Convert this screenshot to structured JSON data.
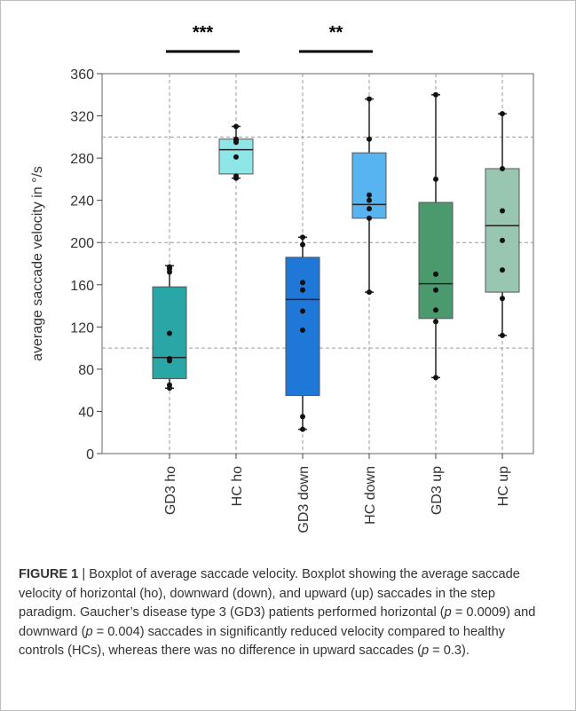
{
  "chart_data": {
    "type": "box",
    "ylabel": "average saccade velocity in °/s",
    "ylim": [
      0,
      360
    ],
    "yticks": [
      0,
      40,
      80,
      120,
      160,
      200,
      240,
      280,
      320,
      360
    ],
    "grid": "dashed, y at 100, 200 and 300; x at each category",
    "categories": [
      "GD3 ho",
      "HC ho",
      "GD3 down",
      "HC down",
      "GD3 up",
      "HC up"
    ],
    "boxes": [
      {
        "category": "GD3 ho",
        "color": "#2aa6a6",
        "min": 62,
        "q1": 71,
        "median": 91,
        "q3": 158,
        "max": 178,
        "points": [
          62,
          65,
          88,
          90,
          114,
          172,
          175,
          177
        ]
      },
      {
        "category": "HC ho",
        "color": "#8ee6e6",
        "min": 261,
        "q1": 265,
        "median": 288,
        "q3": 298,
        "max": 310,
        "points": [
          261,
          263,
          281,
          295,
          297,
          298,
          310
        ]
      },
      {
        "category": "GD3 down",
        "color": "#1f78d8",
        "min": 23,
        "q1": 55,
        "median": 146,
        "q3": 186,
        "max": 205,
        "points": [
          23,
          35,
          117,
          135,
          155,
          162,
          198,
          205
        ]
      },
      {
        "category": "HC down",
        "color": "#58b4f0",
        "min": 153,
        "q1": 223,
        "median": 236,
        "q3": 285,
        "max": 336,
        "points": [
          153,
          223,
          232,
          240,
          245,
          298,
          336
        ]
      },
      {
        "category": "GD3 up",
        "color": "#4a9a6e",
        "min": 72,
        "q1": 128,
        "median": 161,
        "q3": 238,
        "max": 340,
        "points": [
          72,
          125,
          136,
          155,
          170,
          260,
          340
        ]
      },
      {
        "category": "HC up",
        "color": "#98c6b0",
        "min": 112,
        "q1": 153,
        "median": 216,
        "q3": 270,
        "max": 322,
        "points": [
          112,
          147,
          174,
          202,
          230,
          270,
          322
        ]
      }
    ],
    "significance": [
      {
        "from": "GD3 ho",
        "to": "HC ho",
        "label": "***"
      },
      {
        "from": "GD3 down",
        "to": "HC down",
        "label": "**"
      }
    ]
  },
  "caption": {
    "figure_label": "FIGURE 1",
    "separator": " | ",
    "parts": [
      "Boxplot of average saccade velocity. Boxplot showing the average saccade velocity of horizontal (ho), downward (down), and upward (up) saccades in the step paradigm. Gaucher’s disease type 3 (GD3) patients performed horizontal (",
      "p",
      " = 0.0009) and downward (",
      "p",
      " = 0.004) saccades in significantly reduced velocity compared to healthy controls (HCs), whereas there was no difference in upward saccades (",
      "p",
      " = 0.3)."
    ]
  }
}
